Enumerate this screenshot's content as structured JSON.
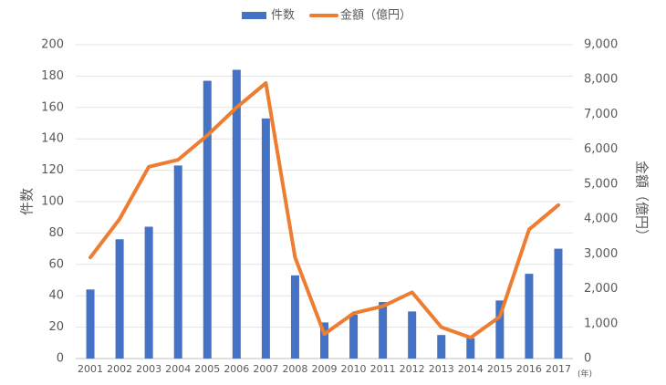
{
  "chart_data": {
    "type": "combo",
    "categories": [
      "2001",
      "2002",
      "2003",
      "2004",
      "2005",
      "2006",
      "2007",
      "2008",
      "2009",
      "2010",
      "2011",
      "2012",
      "2013",
      "2014",
      "2015",
      "2016",
      "2017"
    ],
    "x_label": "(年)",
    "y_label": "件数",
    "y2_label": "金額（億円）",
    "series": [
      {
        "name": "件数",
        "type": "bar",
        "color": "#4472c4",
        "values": [
          44,
          76,
          84,
          123,
          177,
          184,
          153,
          53,
          23,
          28,
          36,
          30,
          15,
          13,
          37,
          54,
          70
        ]
      },
      {
        "name": "金額（億円）",
        "type": "line",
        "axis": "y2",
        "color": "#ed7d31",
        "values": [
          2900,
          4000,
          5500,
          5700,
          6400,
          7200,
          7900,
          2900,
          700,
          1300,
          1500,
          1900,
          900,
          600,
          1200,
          3700,
          4400
        ]
      }
    ],
    "ylim": [
      0,
      200
    ],
    "yticks": [
      0,
      20,
      40,
      60,
      80,
      100,
      120,
      140,
      160,
      180,
      200
    ],
    "y2lim": [
      0,
      9000
    ],
    "y2ticks": [
      0,
      {
        "value": 1000,
        "label": "1,000"
      },
      {
        "value": 2000,
        "label": "2,000"
      },
      {
        "value": 3000,
        "label": "3,000"
      },
      {
        "value": 4000,
        "label": "4,000"
      },
      {
        "value": 5000,
        "label": "5,000"
      },
      {
        "value": 6000,
        "label": "6,000"
      },
      {
        "value": 7000,
        "label": "7,000"
      },
      {
        "value": 8000,
        "label": "8,000"
      },
      {
        "value": 9000,
        "label": "9,000"
      }
    ],
    "grid": true,
    "legend": "top"
  }
}
